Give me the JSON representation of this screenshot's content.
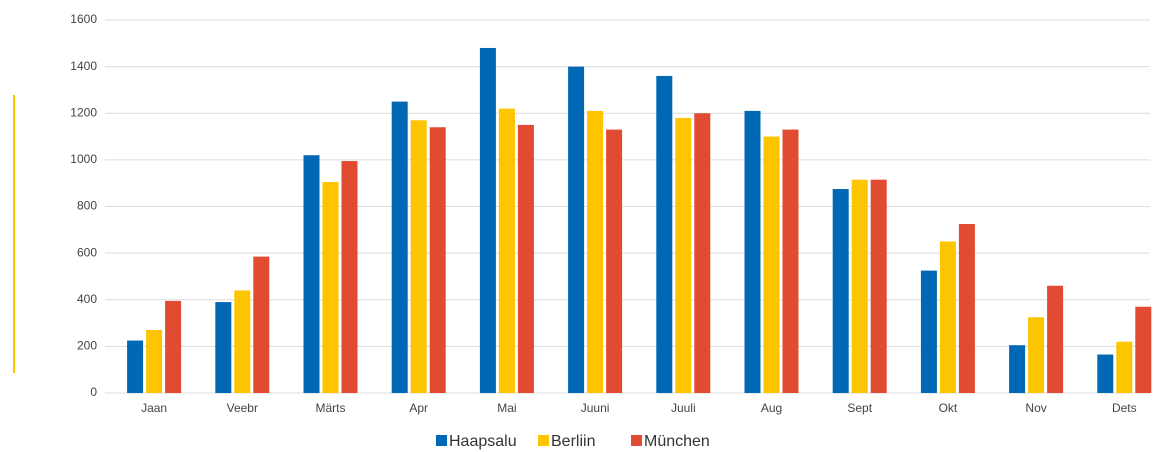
{
  "chart_data": {
    "type": "bar",
    "categories": [
      "Jaan",
      "Veebr",
      "Märts",
      "Apr",
      "Mai",
      "Juuni",
      "Juuli",
      "Aug",
      "Sept",
      "Okt",
      "Nov",
      "Dets"
    ],
    "series": [
      {
        "name": "Haapsalu",
        "color": "#0068b4",
        "values": [
          225,
          390,
          1020,
          1250,
          1480,
          1400,
          1360,
          1210,
          875,
          525,
          205,
          165
        ]
      },
      {
        "name": "Berliin",
        "color": "#fcc500",
        "values": [
          270,
          440,
          905,
          1170,
          1220,
          1210,
          1180,
          1100,
          915,
          650,
          325,
          220
        ]
      },
      {
        "name": "München",
        "color": "#e04b32",
        "values": [
          395,
          585,
          995,
          1140,
          1150,
          1130,
          1200,
          1130,
          915,
          725,
          460,
          370
        ]
      }
    ],
    "ylim": [
      0,
      1600
    ],
    "yticks": [
      0,
      200,
      400,
      600,
      800,
      1000,
      1200,
      1400,
      1600
    ],
    "grid": true,
    "legend": "bottom"
  }
}
